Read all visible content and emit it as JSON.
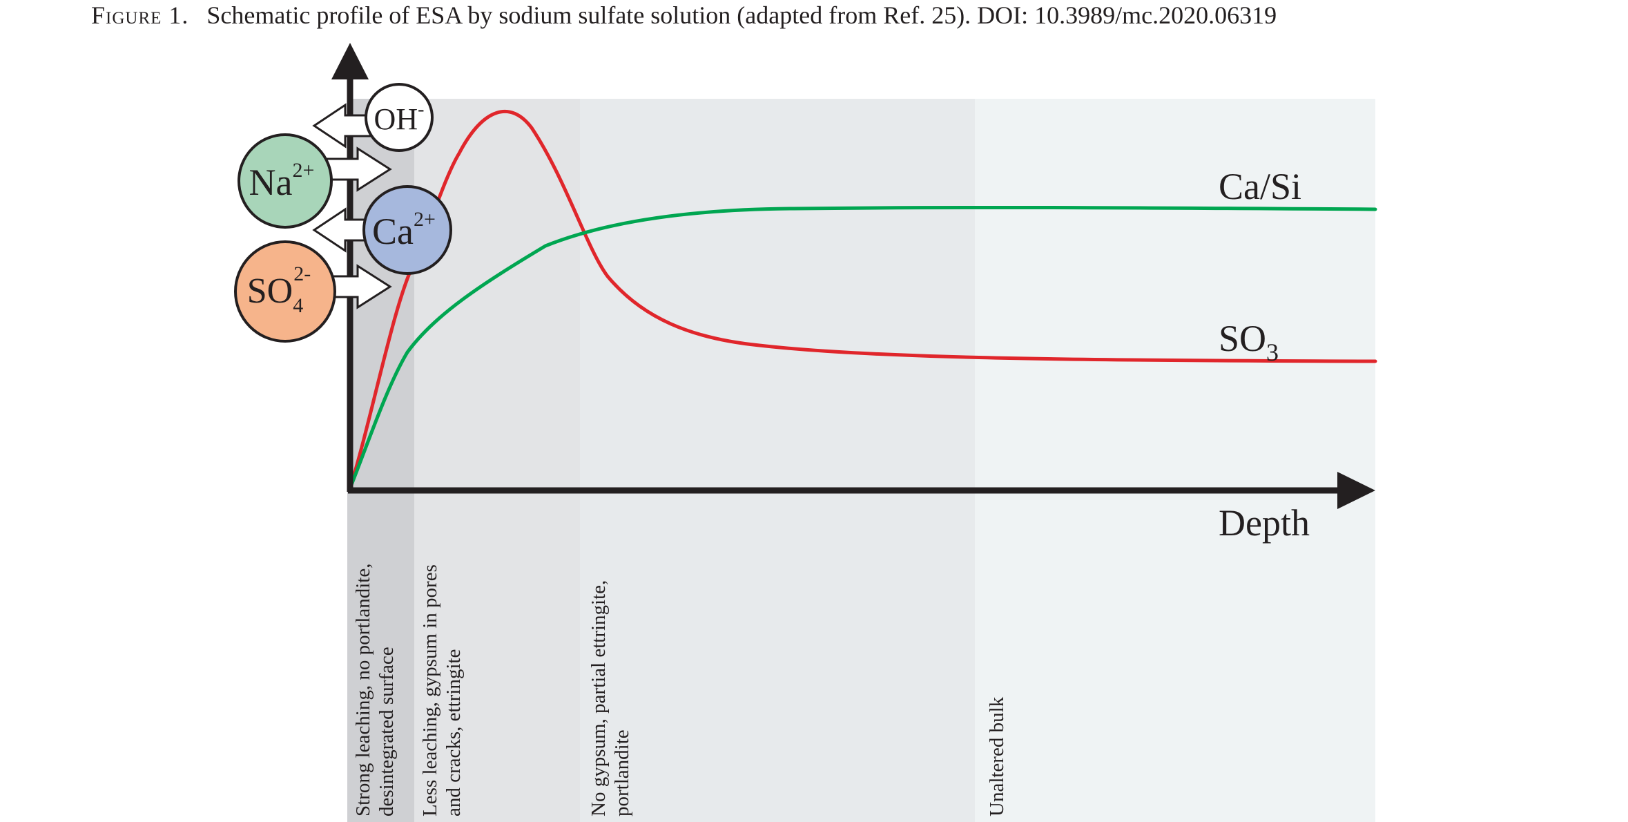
{
  "caption": {
    "label": "Figure 1.",
    "text": "Schematic profile of ESA by sodium sulfate solution (adapted from Ref. 25). DOI: 10.3989/mc.2020.06319"
  },
  "axes": {
    "x_label": "Depth"
  },
  "curves": [
    {
      "name": "Ca/Si",
      "color": "#00a651"
    },
    {
      "name": "SO3",
      "base": "SO",
      "sub": "3",
      "color": "#e0262b"
    }
  ],
  "zones": [
    {
      "label_lines": [
        "Strong leaching, no portlandite,",
        "desintegrated surface"
      ],
      "shade": "#cfd0d3"
    },
    {
      "label_lines": [
        "Less leaching, gypsum in pores",
        "and cracks, ettringite"
      ],
      "shade": "#e3e4e6"
    },
    {
      "label_lines": [
        "No gypsum, partial ettringite,",
        "portlandite"
      ],
      "shade": "#e7eaec"
    },
    {
      "label_lines": [
        "Unaltered bulk"
      ],
      "shade": "#eff3f4"
    }
  ],
  "ions": [
    {
      "base": "OH",
      "charge": "-",
      "fill": "#ffffff",
      "direction": "out"
    },
    {
      "base": "Na",
      "charge": "2+",
      "fill": "#a8d5b9",
      "direction": "in"
    },
    {
      "base": "Ca",
      "charge": "2+",
      "fill": "#a6b8dd",
      "direction": "out"
    },
    {
      "base": "SO",
      "sub": "4",
      "charge": "2-",
      "fill": "#f6b48b",
      "direction": "in"
    }
  ]
}
